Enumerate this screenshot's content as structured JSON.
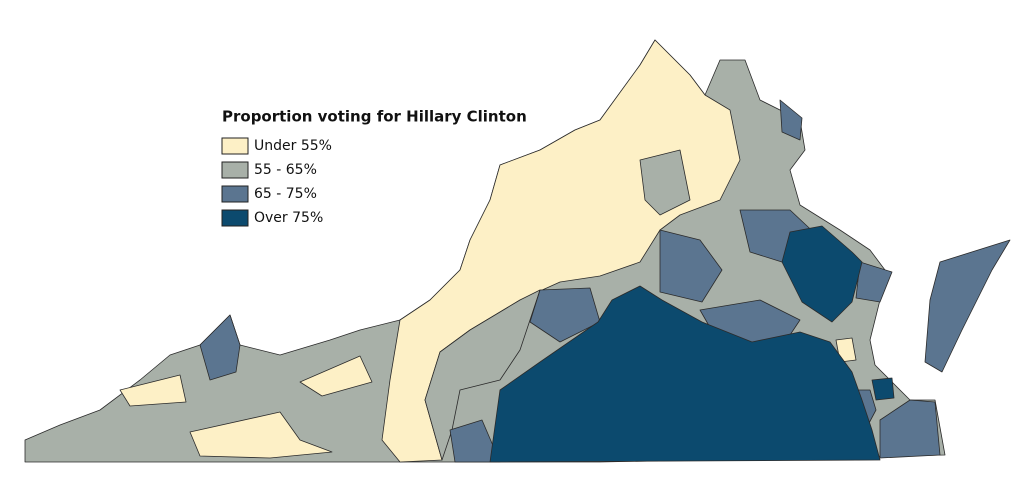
{
  "legend": {
    "title": "Proportion voting for Hillary Clinton",
    "items": [
      {
        "label": "Under 55%",
        "color": "#fdf0c6"
      },
      {
        "label": "55 - 65%",
        "color": "#a8b0a8"
      },
      {
        "label": "65 - 75%",
        "color": "#5b7590"
      },
      {
        "label": "Over 75%",
        "color": "#0c4a6e"
      }
    ]
  }
}
